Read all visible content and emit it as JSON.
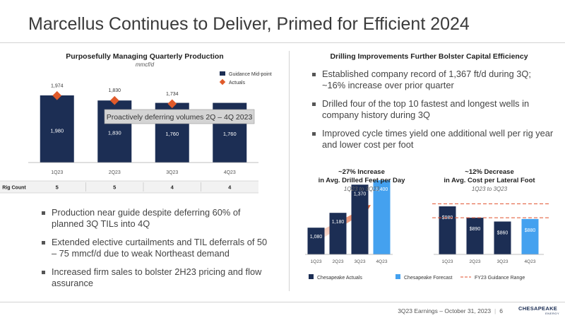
{
  "header": {
    "title": "Marcellus Continues to Deliver, Primed for Efficient 2024"
  },
  "left_panel": {
    "title": "Purposefully Managing Quarterly Production",
    "unit": "mmcf/d",
    "callout": "Proactively deferring volumes 2Q – 4Q 2023",
    "rig_count_label": "Rig Count",
    "rig_counts": [
      "5",
      "5",
      "4",
      "4"
    ],
    "bullets": [
      "Production near guide despite deferring 60% of planned 3Q TILs into 4Q",
      "Extended elective curtailments and TIL deferrals of 50 – 75 mmcf/d due to weak Northeast demand",
      "Increased firm sales to bolster 2H23 pricing and flow assurance"
    ]
  },
  "right_panel": {
    "title": "Drilling Improvements Further Bolster Capital Efficiency",
    "bullets": [
      "Established company record of 1,367 ft/d during 3Q; ~16% increase over prior quarter",
      "Drilled four of the top 10 fastest and longest wells in company history during 3Q",
      "Improved cycle times yield one additional well per rig year and lower cost per foot"
    ],
    "chart1_title": [
      "~27% Increase",
      "in Avg. Drilled Feet per Day"
    ],
    "chart1_sub": "1Q23 to 3Q23",
    "chart2_title": [
      "~12% Decrease",
      "in Avg. Cost per Lateral Foot"
    ],
    "chart2_sub": "1Q23 to 3Q23",
    "legend": {
      "actuals": "Chesapeake Actuals",
      "forecast": "Chesapeake Forecast",
      "guidance": "FY23 Guidance Range"
    }
  },
  "footer": {
    "text": "3Q23 Earnings – October 31, 2023",
    "page": "6",
    "logo_top": "CHESAPEAKE",
    "logo_bottom": "ENERGY"
  },
  "colors": {
    "navy": "#1c2e54",
    "light_blue": "#44a1ef",
    "orange": "#e05a2a",
    "guidance_line": "#e0502c",
    "callout_fill": "#d4d4d4"
  },
  "chart_data": [
    {
      "type": "bar",
      "title": "Purposefully Managing Quarterly Production",
      "ylabel": "mmcf/d",
      "categories": [
        "1Q23",
        "2Q23",
        "3Q23",
        "4Q23"
      ],
      "series": [
        {
          "name": "Guidance Mid-point",
          "values": [
            1980,
            1830,
            1760,
            1760
          ],
          "labels": [
            "1,980",
            "1,830",
            "1,760",
            "1,760"
          ],
          "style": "bar"
        },
        {
          "name": "Actuals",
          "values": [
            1974,
            1830,
            1734,
            null
          ],
          "labels": [
            "1,974",
            "1,830",
            "1,734",
            null
          ],
          "style": "marker"
        }
      ],
      "legend": "top-right"
    },
    {
      "type": "bar",
      "title": "~27% Increase in Avg. Drilled Feet per Day",
      "subtitle": "1Q23 to 3Q23",
      "categories": [
        "1Q23",
        "2Q23",
        "3Q23",
        "4Q23"
      ],
      "values": [
        1080,
        1180,
        1370,
        1400
      ],
      "labels": [
        "1,080",
        "1,180",
        "1,370",
        "1,400"
      ],
      "series_by_bar": [
        "Chesapeake Actuals",
        "Chesapeake Actuals",
        "Chesapeake Actuals",
        "Chesapeake Forecast"
      ],
      "ylim": [
        900,
        1430
      ]
    },
    {
      "type": "bar",
      "title": "~12% Decrease in Avg. Cost per Lateral Foot",
      "subtitle": "1Q23 to 3Q23",
      "categories": [
        "1Q23",
        "2Q23",
        "3Q23",
        "4Q23"
      ],
      "values": [
        980,
        890,
        860,
        880
      ],
      "labels": [
        "$980",
        "$890",
        "$860",
        "$880"
      ],
      "series_by_bar": [
        "Chesapeake Actuals",
        "Chesapeake Actuals",
        "Chesapeake Actuals",
        "Chesapeake Forecast"
      ],
      "guidance_range": [
        890,
        1000
      ],
      "ylim": [
        600,
        1060
      ]
    }
  ]
}
